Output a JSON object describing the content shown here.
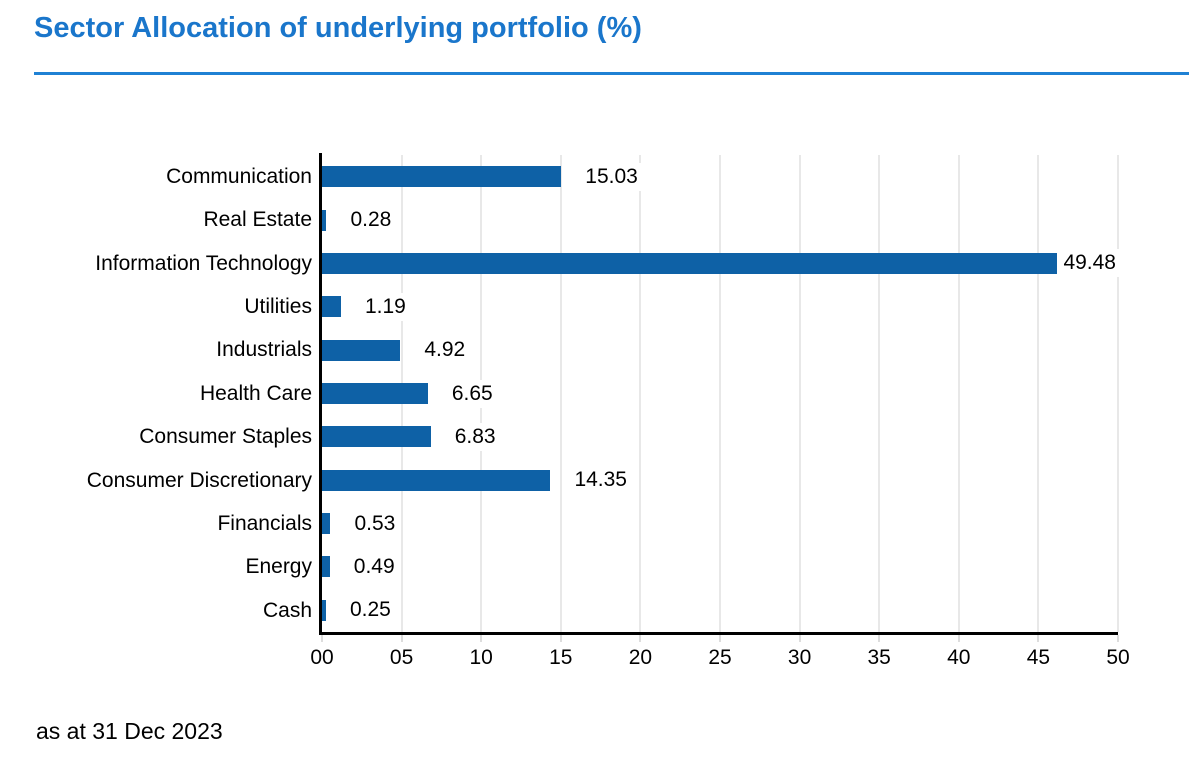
{
  "page": {
    "title": "Sector Allocation of underlying portfolio (%)",
    "footer": "as at 31 Dec 2023"
  },
  "colors": {
    "title_blue": "#1A76CB",
    "rule_blue": "#1F81D4",
    "bar_blue": "#0E61A6",
    "gridline": "#E8E8E8",
    "tick_stub": "#DDDDDD",
    "axis": "#000000"
  },
  "chart_data": {
    "type": "bar",
    "orientation": "horizontal",
    "title": "Sector Allocation of underlying portfolio (%)",
    "categories": [
      "Communication",
      "Real Estate",
      "Information Technology",
      "Utilities",
      "Industrials",
      "Health Care",
      "Consumer Staples",
      "Consumer Discretionary",
      "Financials",
      "Energy",
      "Cash"
    ],
    "values": [
      15.03,
      0.28,
      49.48,
      1.19,
      4.92,
      6.65,
      6.83,
      14.35,
      0.53,
      0.49,
      0.25
    ],
    "value_labels": [
      "15.03",
      "0.28",
      "49.48",
      "1.19",
      "4.92",
      "6.65",
      "6.83",
      "14.35",
      "0.53",
      "0.49",
      "0.25"
    ],
    "xlabel": "",
    "ylabel": "",
    "xlim": [
      0,
      50
    ],
    "x_tick_interval": 5,
    "x_tick_labels": [
      "00",
      "05",
      "10",
      "15",
      "20",
      "25",
      "30",
      "35",
      "40",
      "45",
      "50"
    ],
    "grid": true,
    "legend": "none",
    "value_label_position": "outside-end"
  }
}
